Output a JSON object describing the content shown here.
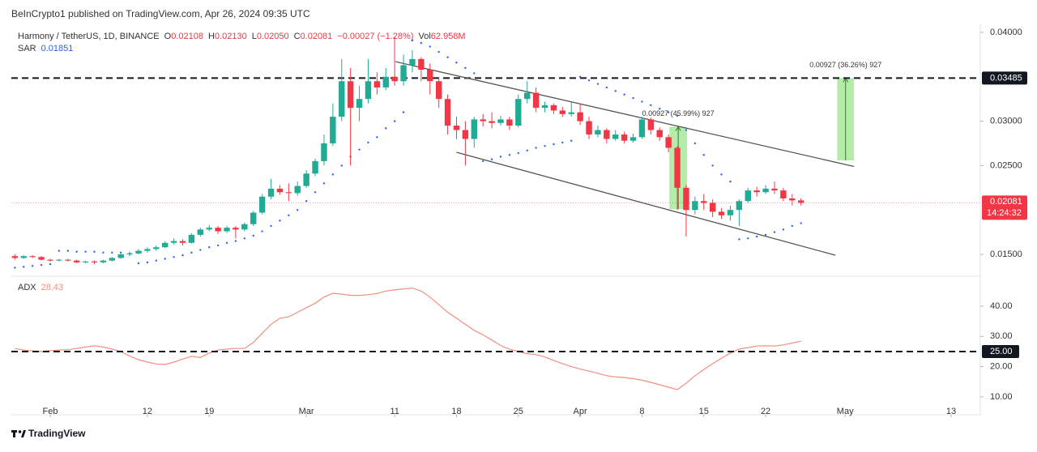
{
  "header": "BeInCrypto1 published on TradingView.com, Apr 26, 2024 09:35 UTC",
  "footer": "TradingView",
  "chart_data": {
    "type": "candlestick",
    "symbol": "Harmony / TetherUS, 1D, BINANCE",
    "legend": {
      "labels": [
        "O",
        "H",
        "L",
        "C"
      ],
      "values": [
        "0.02108",
        "0.02130",
        "0.02050",
        "0.02081"
      ],
      "change": "−0.00027 (−1.28%)",
      "volume_label": "Vol",
      "volume": "62.958M"
    },
    "up_color": "#22ab94",
    "down_color": "#f23645",
    "x": [
      0,
      1,
      2,
      3,
      4,
      5,
      6,
      7,
      8,
      9,
      10,
      11,
      12,
      13,
      14,
      15,
      16,
      17,
      18,
      19,
      20,
      21,
      22,
      23,
      24,
      25,
      26,
      27,
      28,
      29,
      30,
      31,
      32,
      33,
      34,
      35,
      36,
      37,
      38,
      39,
      40,
      41,
      42,
      43,
      44,
      45,
      46,
      47,
      48,
      49,
      50,
      51,
      52,
      53,
      54,
      55,
      56,
      57,
      58,
      59,
      60,
      61,
      62,
      63,
      64,
      65,
      66,
      67,
      68,
      69,
      70,
      71,
      72,
      73,
      74,
      75,
      76,
      77,
      78,
      79,
      80,
      81,
      82,
      83,
      84,
      85,
      86,
      87,
      88,
      89
    ],
    "xlim": [
      -0.4,
      109.3
    ],
    "xticks": [
      {
        "value": 4,
        "label": "Feb"
      },
      {
        "value": 15,
        "label": "12"
      },
      {
        "value": 22,
        "label": "19"
      },
      {
        "value": 33,
        "label": "Mar"
      },
      {
        "value": 43,
        "label": "11"
      },
      {
        "value": 50,
        "label": "18"
      },
      {
        "value": 57,
        "label": "25"
      },
      {
        "value": 64,
        "label": "Apr"
      },
      {
        "value": 71,
        "label": "8"
      },
      {
        "value": 78,
        "label": "15"
      },
      {
        "value": 85,
        "label": "22"
      },
      {
        "value": 94,
        "label": "May"
      },
      {
        "value": 106,
        "label": "13"
      }
    ],
    "candles": [
      [
        0.0148,
        0.015,
        0.0144,
        0.0146
      ],
      [
        0.0146,
        0.0149,
        0.0145,
        0.0148
      ],
      [
        0.0148,
        0.0149,
        0.0146,
        0.0147
      ],
      [
        0.0147,
        0.0148,
        0.0143,
        0.0144
      ],
      [
        0.0144,
        0.0145,
        0.0142,
        0.0143
      ],
      [
        0.0143,
        0.0145,
        0.0142,
        0.0144
      ],
      [
        0.0144,
        0.0145,
        0.0142,
        0.0143
      ],
      [
        0.0143,
        0.0144,
        0.014,
        0.0141
      ],
      [
        0.0141,
        0.0143,
        0.014,
        0.0142
      ],
      [
        0.0142,
        0.0143,
        0.0139,
        0.0141
      ],
      [
        0.0141,
        0.0144,
        0.014,
        0.0143
      ],
      [
        0.0143,
        0.0147,
        0.0142,
        0.0146
      ],
      [
        0.0146,
        0.0152,
        0.0145,
        0.015
      ],
      [
        0.015,
        0.0153,
        0.0148,
        0.0151
      ],
      [
        0.0151,
        0.0156,
        0.015,
        0.0154
      ],
      [
        0.0154,
        0.0158,
        0.0152,
        0.0156
      ],
      [
        0.0156,
        0.016,
        0.0154,
        0.0158
      ],
      [
        0.0158,
        0.0165,
        0.0157,
        0.0163
      ],
      [
        0.0163,
        0.0168,
        0.0161,
        0.0165
      ],
      [
        0.0165,
        0.0167,
        0.016,
        0.0163
      ],
      [
        0.0163,
        0.0174,
        0.0162,
        0.0172
      ],
      [
        0.0172,
        0.018,
        0.017,
        0.0178
      ],
      [
        0.0178,
        0.0183,
        0.0176,
        0.018
      ],
      [
        0.018,
        0.0182,
        0.0173,
        0.0176
      ],
      [
        0.0176,
        0.0182,
        0.0174,
        0.018
      ],
      [
        0.018,
        0.0182,
        0.0168,
        0.0178
      ],
      [
        0.0178,
        0.0186,
        0.0176,
        0.0184
      ],
      [
        0.0184,
        0.0199,
        0.0182,
        0.0197
      ],
      [
        0.0197,
        0.0218,
        0.0195,
        0.0215
      ],
      [
        0.0215,
        0.0235,
        0.0212,
        0.0224
      ],
      [
        0.0224,
        0.0228,
        0.0217,
        0.022
      ],
      [
        0.022,
        0.023,
        0.021,
        0.0219
      ],
      [
        0.0219,
        0.0232,
        0.0216,
        0.0227
      ],
      [
        0.0227,
        0.0245,
        0.0225,
        0.0241
      ],
      [
        0.0241,
        0.0258,
        0.0238,
        0.0255
      ],
      [
        0.0255,
        0.0285,
        0.025,
        0.0275
      ],
      [
        0.0275,
        0.032,
        0.0272,
        0.0305
      ],
      [
        0.0305,
        0.037,
        0.03,
        0.0345
      ],
      [
        0.0345,
        0.036,
        0.025,
        0.0315
      ],
      [
        0.0315,
        0.034,
        0.03,
        0.0325
      ],
      [
        0.0325,
        0.037,
        0.032,
        0.0345
      ],
      [
        0.0345,
        0.0355,
        0.033,
        0.0338
      ],
      [
        0.0338,
        0.036,
        0.0335,
        0.035
      ],
      [
        0.035,
        0.0395,
        0.034,
        0.0345
      ],
      [
        0.0345,
        0.0375,
        0.034,
        0.0363
      ],
      [
        0.0363,
        0.038,
        0.0355,
        0.037
      ],
      [
        0.037,
        0.0372,
        0.0345,
        0.0358
      ],
      [
        0.0358,
        0.0365,
        0.033,
        0.0345
      ],
      [
        0.0345,
        0.035,
        0.0315,
        0.0325
      ],
      [
        0.0325,
        0.033,
        0.0285,
        0.0295
      ],
      [
        0.0295,
        0.0305,
        0.028,
        0.029
      ],
      [
        0.029,
        0.03,
        0.025,
        0.028
      ],
      [
        0.028,
        0.0305,
        0.027,
        0.0302
      ],
      [
        0.0302,
        0.0308,
        0.0294,
        0.03
      ],
      [
        0.03,
        0.031,
        0.0292,
        0.0298
      ],
      [
        0.0298,
        0.0306,
        0.0295,
        0.0302
      ],
      [
        0.0302,
        0.0305,
        0.029,
        0.0295
      ],
      [
        0.0295,
        0.033,
        0.0293,
        0.0325
      ],
      [
        0.0325,
        0.0345,
        0.032,
        0.0332
      ],
      [
        0.0332,
        0.0338,
        0.031,
        0.0315
      ],
      [
        0.0315,
        0.0322,
        0.031,
        0.0318
      ],
      [
        0.0318,
        0.032,
        0.0308,
        0.0312
      ],
      [
        0.0312,
        0.0316,
        0.0305,
        0.0308
      ],
      [
        0.0308,
        0.0322,
        0.0305,
        0.031
      ],
      [
        0.031,
        0.032,
        0.0296,
        0.03
      ],
      [
        0.03,
        0.0305,
        0.028,
        0.0285
      ],
      [
        0.0285,
        0.0295,
        0.0282,
        0.029
      ],
      [
        0.029,
        0.0292,
        0.0275,
        0.028
      ],
      [
        0.028,
        0.029,
        0.0278,
        0.0285
      ],
      [
        0.0285,
        0.0288,
        0.0275,
        0.0278
      ],
      [
        0.0278,
        0.0286,
        0.0276,
        0.0282
      ],
      [
        0.0282,
        0.0305,
        0.028,
        0.0302
      ],
      [
        0.0302,
        0.0304,
        0.0285,
        0.029
      ],
      [
        0.029,
        0.0293,
        0.0278,
        0.0282
      ],
      [
        0.0282,
        0.0285,
        0.0265,
        0.027
      ],
      [
        0.027,
        0.0272,
        0.02,
        0.0225
      ],
      [
        0.0225,
        0.0228,
        0.017,
        0.02
      ],
      [
        0.02,
        0.0215,
        0.0195,
        0.021
      ],
      [
        0.021,
        0.0218,
        0.02,
        0.0208
      ],
      [
        0.0208,
        0.0212,
        0.0192,
        0.0198
      ],
      [
        0.0198,
        0.0202,
        0.019,
        0.0194
      ],
      [
        0.0194,
        0.0205,
        0.0188,
        0.02
      ],
      [
        0.02,
        0.0212,
        0.0182,
        0.021
      ],
      [
        0.021,
        0.0225,
        0.0208,
        0.0222
      ],
      [
        0.0222,
        0.0226,
        0.0215,
        0.022
      ],
      [
        0.022,
        0.0228,
        0.0218,
        0.0224
      ],
      [
        0.0224,
        0.0232,
        0.0218,
        0.0222
      ],
      [
        0.0222,
        0.0225,
        0.021,
        0.0213
      ],
      [
        0.0213,
        0.0218,
        0.0205,
        0.02108
      ],
      [
        0.02108,
        0.0213,
        0.0205,
        0.02081
      ]
    ],
    "ylim": [
      0.01263,
      0.04091
    ],
    "yticks": [
      {
        "value": 0.04,
        "label": "0.04000"
      },
      {
        "value": 0.03,
        "label": "0.03000"
      },
      {
        "value": 0.025,
        "label": "0.02500"
      },
      {
        "value": 0.015,
        "label": "0.01500"
      }
    ],
    "grid": false,
    "countdown": "14:24:32",
    "hline": 0.03485,
    "trendline_color": "#555555",
    "trendlines": [
      {
        "x": [
          43.1,
          95
        ],
        "y": [
          0.0367,
          0.0249
        ]
      },
      {
        "x": [
          50,
          92.9
        ],
        "y": [
          0.0265,
          0.0149
        ]
      }
    ],
    "range_color": "#9ee58c",
    "ranges": [
      {
        "x": [
          74.1,
          76.1
        ],
        "y": [
          0.0201,
          0.02937
        ],
        "label": "0.00927 (45.99%) 927"
      },
      {
        "x": [
          93.1,
          95
        ],
        "y": [
          0.02558,
          0.03485
        ],
        "label": "0.00927 (36.26%) 927"
      }
    ],
    "sar": {
      "name": "SAR",
      "color": "#2962ff",
      "values": [
        0.0135,
        0.0136,
        0.0137,
        0.0138,
        0.0139,
        0.0154,
        0.0154,
        0.0153,
        0.0153,
        0.0153,
        0.0152,
        0.0152,
        0.0152,
        0.0151,
        0.014,
        0.0141,
        0.0143,
        0.0145,
        0.0147,
        0.0149,
        0.0152,
        0.0155,
        0.0158,
        0.016,
        0.0163,
        0.0165,
        0.0168,
        0.0171,
        0.0176,
        0.0182,
        0.0188,
        0.0194,
        0.02,
        0.021,
        0.022,
        0.023,
        0.024,
        0.025,
        0.026,
        0.0268,
        0.0276,
        0.0282,
        0.0292,
        0.03,
        0.031,
        0.0391,
        0.0388,
        0.0384,
        0.0378,
        0.0372,
        0.0366,
        0.036,
        0.0354,
        0.0255,
        0.0257,
        0.026,
        0.0262,
        0.0264,
        0.0267,
        0.027,
        0.0272,
        0.0274,
        0.0276,
        0.0278,
        0.035,
        0.0346,
        0.0342,
        0.0338,
        0.0334,
        0.033,
        0.0326,
        0.0322,
        0.0318,
        0.0314,
        0.031,
        0.0306,
        0.029,
        0.0275,
        0.0262,
        0.025,
        0.024,
        0.0232,
        0.0167,
        0.0168,
        0.017,
        0.0172,
        0.0175,
        0.0178,
        0.0182,
        0.01851
      ]
    },
    "adx": {
      "name": "ADX",
      "color": "#f0907f",
      "values": [
        26.0,
        25.5,
        25.2,
        25.0,
        25.3,
        25.5,
        25.6,
        26.0,
        26.5,
        26.9,
        26.5,
        25.8,
        25.0,
        23.5,
        22.3,
        21.5,
        20.9,
        20.7,
        21.5,
        22.5,
        23.4,
        23.0,
        24.5,
        25.5,
        25.8,
        26.0,
        26.0,
        28.0,
        31.0,
        34.0,
        36.0,
        36.5,
        38.0,
        39.5,
        41.0,
        43.0,
        44.3,
        44.0,
        43.6,
        43.6,
        43.8,
        44.2,
        45.0,
        45.4,
        45.7,
        46.0,
        45.0,
        43.0,
        40.5,
        38.0,
        36.0,
        34.0,
        32.0,
        30.5,
        28.8,
        27.0,
        25.8,
        25.0,
        24.3,
        24.0,
        23.2,
        22.0,
        21.0,
        20.0,
        19.2,
        18.5,
        17.8,
        17.0,
        16.6,
        16.4,
        16.0,
        15.5,
        14.8,
        14.0,
        13.2,
        12.4,
        14.5,
        17.0,
        19.0,
        21.0,
        22.8,
        24.5,
        25.8,
        26.3,
        26.8,
        26.9,
        26.8,
        27.2,
        27.8,
        28.43
      ],
      "ylim": [
        4.08,
        49.65
      ],
      "yticks": [
        {
          "value": 40,
          "label": "40.00"
        },
        {
          "value": 30,
          "label": "30.00"
        },
        {
          "value": 20,
          "label": "20.00"
        },
        {
          "value": 10,
          "label": "10.00"
        }
      ],
      "hline": {
        "value": 25,
        "label": "25.00"
      }
    }
  }
}
